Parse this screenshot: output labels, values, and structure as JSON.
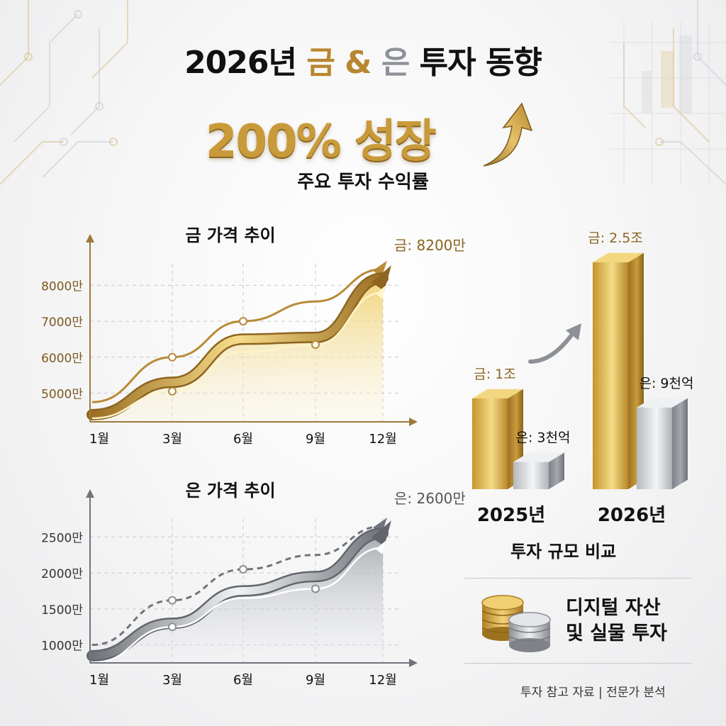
{
  "header": {
    "title_year": "2026년",
    "title_gold": "금",
    "title_amp": "&",
    "title_silver": "은",
    "title_rest": "투자 동향",
    "headline": "200% 성장",
    "subtitle": "주요 투자 수익률"
  },
  "colors": {
    "gold": "#c99a3a",
    "gold_light": "#f2d680",
    "silver": "#8d9197",
    "silver_light": "#dfe2e6",
    "text": "#111111"
  },
  "chart_data": [
    {
      "type": "area",
      "title": "금 가격 추이",
      "categories": [
        "1월",
        "3월",
        "6월",
        "9월",
        "12월"
      ],
      "y_ticks": [
        "5000만",
        "6000만",
        "7000만",
        "8000만"
      ],
      "ylim": [
        4200,
        8600
      ],
      "series": [
        {
          "values": [
            4750,
            6000,
            7000,
            7550,
            8450
          ],
          "style": "upper-line"
        },
        {
          "values": [
            4400,
            5300,
            6500,
            6550,
            8200
          ],
          "style": "main-band"
        },
        {
          "values": [
            4300,
            5050,
            6150,
            6350,
            7800
          ],
          "style": "lower-line"
        }
      ],
      "end_label": "금: 8200만",
      "grid": true
    },
    {
      "type": "area",
      "title": "은 가격 추이",
      "categories": [
        "1월",
        "3월",
        "6월",
        "9월",
        "12월"
      ],
      "y_ticks": [
        "1000만",
        "1500만",
        "2000만",
        "2500만"
      ],
      "ylim": [
        750,
        2750
      ],
      "series": [
        {
          "values": [
            1000,
            1620,
            2050,
            2250,
            2650
          ],
          "style": "dashed-line"
        },
        {
          "values": [
            850,
            1300,
            1750,
            1950,
            2550
          ],
          "style": "main-band"
        },
        {
          "values": [
            750,
            1250,
            1650,
            1780,
            2350
          ],
          "style": "lower-line"
        }
      ],
      "end_label": "은: 2600만",
      "grid": true
    },
    {
      "type": "bar",
      "title": "투자 규모 비교",
      "categories": [
        "2025년",
        "2026년"
      ],
      "series": [
        {
          "name": "금",
          "values": [
            1.0,
            2.5
          ],
          "labels": [
            "금: 1조",
            "금: 2.5조"
          ]
        },
        {
          "name": "은",
          "values": [
            0.3,
            0.9
          ],
          "labels": [
            "은: 3천억",
            "은: 9천억"
          ]
        }
      ]
    }
  ],
  "info": {
    "line1": "디지털 자산",
    "line2": "및 실물 투자"
  },
  "footer": "투자 참고 자료 | 전문가 분석"
}
